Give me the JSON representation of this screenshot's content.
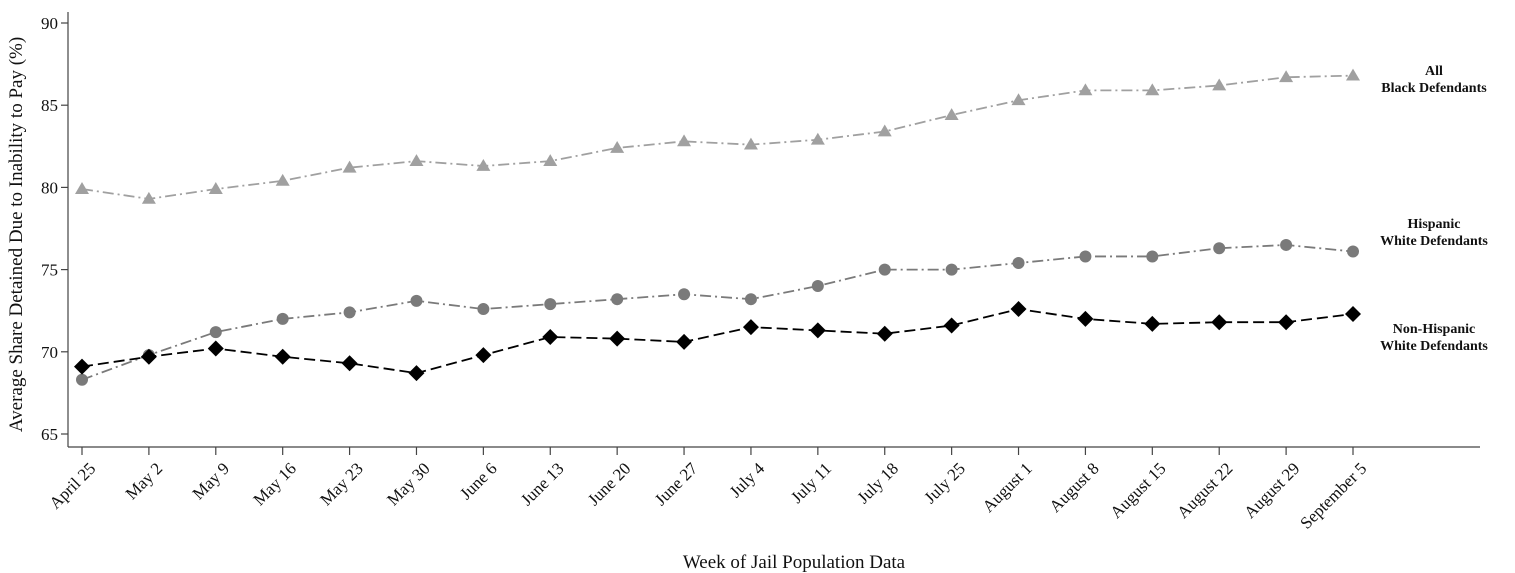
{
  "chart_data": {
    "type": "line",
    "categories": [
      "April 25",
      "May 2",
      "May 9",
      "May 16",
      "May 23",
      "May 30",
      "June 6",
      "June 13",
      "June 20",
      "June 27",
      "July 4",
      "July 11",
      "July 18",
      "July 25",
      "August 1",
      "August 8",
      "August 15",
      "August 22",
      "August 29",
      "September 5"
    ],
    "xlabel": "Week of Jail Population Data",
    "ylabel": "Average Share Detained Due to Inability to Pay (%)",
    "ylim": [
      64.5,
      90.5
    ],
    "yticks": [
      65,
      70,
      75,
      80,
      85,
      90
    ],
    "grid": false,
    "legend": "none",
    "series": [
      {
        "name": "All Black Defendants",
        "label_lines": [
          "All",
          "Black Defendants"
        ],
        "marker": "triangle",
        "color": "#a0a0a0",
        "dash": "dashdot",
        "values": [
          79.9,
          79.3,
          79.9,
          80.4,
          81.2,
          81.6,
          81.3,
          81.6,
          82.4,
          82.8,
          82.6,
          82.9,
          83.4,
          84.4,
          85.3,
          85.9,
          85.9,
          86.2,
          86.7,
          86.8
        ]
      },
      {
        "name": "Hispanic White Defendants",
        "label_lines": [
          "Hispanic",
          "White Defendants"
        ],
        "marker": "circle",
        "color": "#7a7a7a",
        "dash": "dashdot",
        "values": [
          68.3,
          69.8,
          71.2,
          72.0,
          72.4,
          73.1,
          72.6,
          72.9,
          73.2,
          73.5,
          73.2,
          74.0,
          75.0,
          75.0,
          75.4,
          75.8,
          75.8,
          76.3,
          76.5,
          76.1
        ]
      },
      {
        "name": "Non-Hispanic White Defendants",
        "label_lines": [
          "Non-Hispanic",
          "White Defendants"
        ],
        "marker": "diamond",
        "color": "#000000",
        "dash": "dash",
        "values": [
          69.1,
          69.7,
          70.2,
          69.7,
          69.3,
          68.7,
          69.8,
          70.9,
          70.8,
          70.6,
          71.5,
          71.3,
          71.1,
          71.6,
          72.6,
          72.0,
          71.7,
          71.8,
          71.8,
          72.3
        ]
      }
    ]
  }
}
